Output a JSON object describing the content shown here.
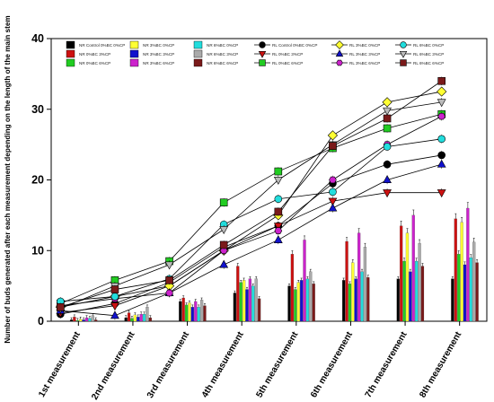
{
  "chart_data": {
    "type": "bar+line",
    "ylabel": "Number of buds generated after each measurement depending on the length of the main stem",
    "xlabel": "",
    "ylim": [
      0,
      40
    ],
    "yticks": [
      0,
      10,
      20,
      30,
      40
    ],
    "grid": false,
    "legend_position": "top, inside plot, 4 rows x 7 columns",
    "categories": [
      "1st measurement",
      "2nd measurement",
      "3rd measurement",
      "4th measurement",
      "5th measurement",
      "6th measurement",
      "7th measurement",
      "8th measurement"
    ],
    "bar_series": [
      {
        "name": "NR Control 0%BC 0%CP",
        "color": "#000000",
        "values": [
          0.2,
          0.5,
          2.8,
          4.0,
          5.0,
          5.8,
          6.0,
          6.0
        ]
      },
      {
        "name": "NR 0%BC 3%CP",
        "color": "#cc1111",
        "values": [
          0.6,
          1.2,
          3.3,
          7.8,
          9.5,
          11.3,
          13.5,
          14.5
        ]
      },
      {
        "name": "NR 0%BC 6%CP",
        "color": "#22cc22",
        "values": [
          0.1,
          0.4,
          2.3,
          5.5,
          4.5,
          5.3,
          8.5,
          9.5
        ]
      },
      {
        "name": "NR 3%BC 0%CP",
        "color": "#ffff33",
        "values": [
          0.3,
          0.9,
          2.6,
          5.8,
          5.5,
          8.3,
          12.5,
          14.0
        ]
      },
      {
        "name": "NR 3%BC 3%CP",
        "color": "#1111cc",
        "values": [
          0.2,
          0.6,
          2.0,
          4.5,
          5.8,
          6.0,
          7.0,
          8.0
        ]
      },
      {
        "name": "NR 3%BC 6%CP",
        "color": "#cc22cc",
        "values": [
          0.5,
          1.0,
          2.8,
          6.0,
          11.5,
          12.5,
          15.0,
          16.0
        ]
      },
      {
        "name": "NR 6%BC 0%CP",
        "color": "#22dddd",
        "values": [
          0.4,
          1.0,
          2.0,
          5.0,
          6.0,
          7.0,
          8.5,
          9.0
        ]
      },
      {
        "name": "NR 6%BC 3%CP",
        "color": "#aaaaaa",
        "values": [
          0.8,
          2.0,
          3.0,
          6.0,
          7.0,
          10.5,
          11.0,
          11.2
        ]
      },
      {
        "name": "NR 6%BC 6%CP",
        "color": "#7a1a1a",
        "values": [
          0.2,
          0.5,
          2.2,
          3.2,
          5.3,
          6.2,
          7.8,
          8.3
        ]
      }
    ],
    "line_series": [
      {
        "name": "RL Control 0%BC 0%CP",
        "color": "#000000",
        "marker": "circle",
        "values": [
          1.0,
          2.5,
          5.5,
          10.5,
          13.5,
          19.5,
          22.2,
          23.5
        ]
      },
      {
        "name": "RL 0%BC 3%CP",
        "color": "#cc1111",
        "marker": "triangle-down",
        "values": [
          1.2,
          2.2,
          5.0,
          10.0,
          13.5,
          17.0,
          18.2,
          18.2
        ]
      },
      {
        "name": "RL 0%BC 6%CP",
        "color": "#22cc22",
        "marker": "square",
        "values": [
          2.5,
          5.8,
          8.5,
          16.8,
          21.2,
          24.5,
          27.3,
          29.3
        ]
      },
      {
        "name": "RL 3%BC 0%CP",
        "color": "#ffff33",
        "marker": "diamond",
        "values": [
          2.0,
          3.5,
          5.0,
          10.0,
          15.0,
          26.3,
          31.0,
          32.5
        ]
      },
      {
        "name": "RL 3%BC 3%CP",
        "color": "#1111cc",
        "marker": "triangle-up",
        "values": [
          1.5,
          0.8,
          4.0,
          8.0,
          11.5,
          16.0,
          20.0,
          22.2
        ]
      },
      {
        "name": "RL 3%BC 6%CP",
        "color": "#cc22cc",
        "marker": "hexagon",
        "values": [
          2.2,
          3.2,
          4.0,
          10.0,
          12.8,
          20.0,
          25.0,
          29.0
        ]
      },
      {
        "name": "RL 6%BC 0%CP",
        "color": "#22dddd",
        "marker": "circle",
        "values": [
          2.8,
          3.5,
          6.0,
          13.7,
          17.3,
          18.3,
          24.7,
          25.8
        ]
      },
      {
        "name": "RL 6%BC 3%CP",
        "color": "#bbbbbb",
        "marker": "triangle-down",
        "values": [
          1.8,
          5.0,
          8.0,
          13.0,
          20.0,
          25.0,
          29.8,
          31.0
        ]
      },
      {
        "name": "RL 6%BC 6%CP",
        "color": "#7a1a1a",
        "marker": "square",
        "values": [
          2.0,
          4.5,
          5.8,
          10.8,
          15.5,
          24.8,
          28.7,
          34.0
        ]
      }
    ]
  }
}
